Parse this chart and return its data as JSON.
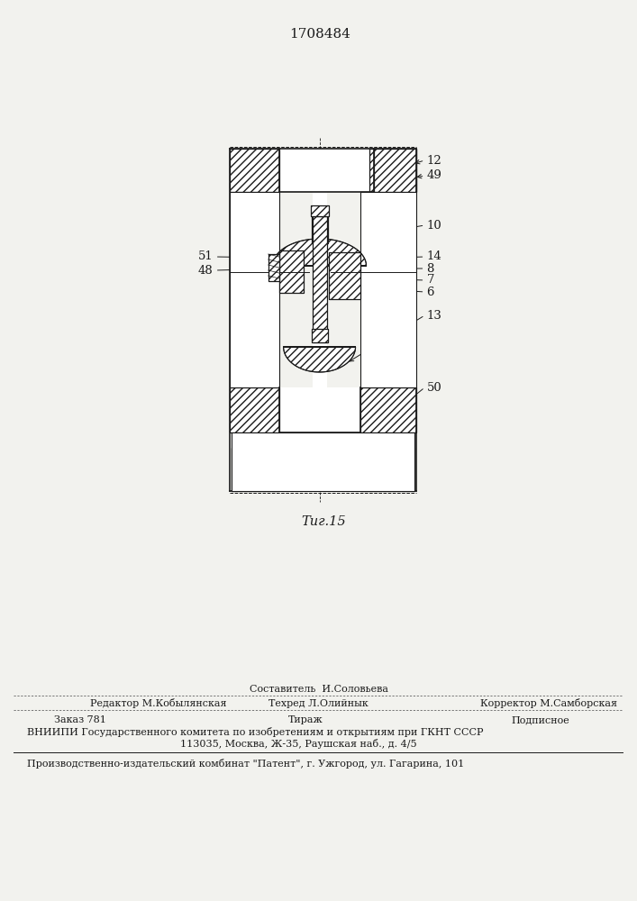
{
  "patent_number": "1708484",
  "fig_label": "Τиг.15",
  "bg_color": "#f2f2ee",
  "line_color": "#1a1a1a",
  "footer_составитель": "Составитель  И.Соловьева",
  "footer_редактор": "Редактор М.Кобылянская",
  "footer_техред": "Техред Л.Олийнык",
  "footer_корректор": "Корректор М.Самборская",
  "footer_заказ": "Заказ 781",
  "footer_тираж": "Тираж",
  "footer_подписное": "Подписное",
  "footer_вниипи1": "ВНИИПИ Государственного комитета по изобретениям и открытиям при ГКНТ СССР",
  "footer_вниипи2": "113035, Москва, Ж-35, Раушская наб., д. 4/5",
  "footer_патент": "Производственно-издательский комбинат \"Патент\", г. Ужгород, ул. Гагарина, 101"
}
